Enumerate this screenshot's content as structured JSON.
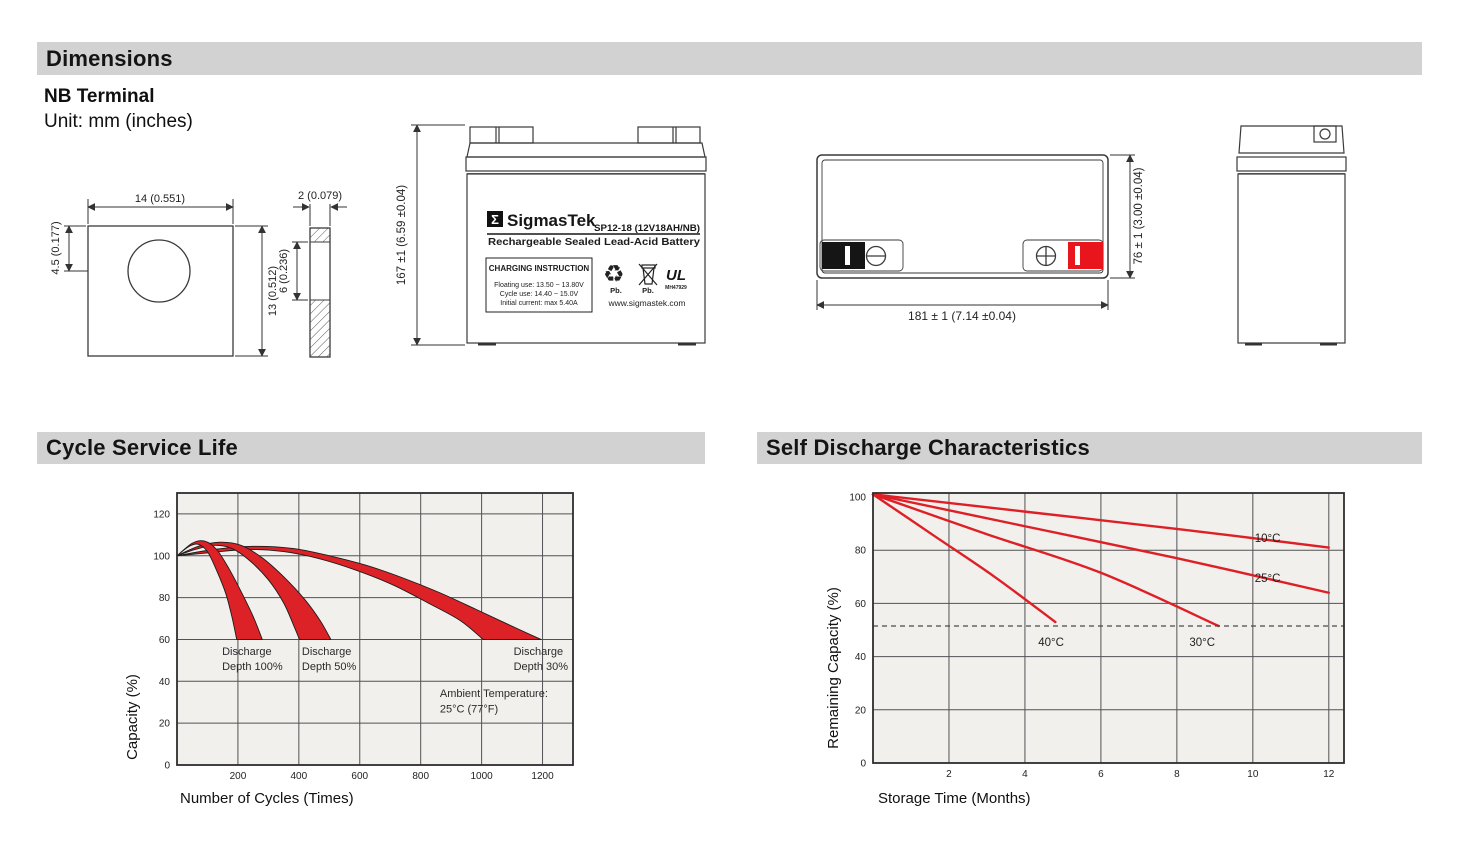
{
  "dimensions": {
    "title": "Dimensions",
    "terminal_label": "NB Terminal",
    "unit_label": "Unit: mm (inches)",
    "terminal": {
      "width": "14 (0.551)",
      "height": "13 (0.512)",
      "hole_offset": "4.5 (0.177)",
      "thickness": "2 (0.079)",
      "slot_height": "6 (0.236)"
    },
    "front_view": {
      "height_dim": "167 ±1 (6.59 ±0.04)",
      "sigma": "Σ",
      "brand": "SigmasTek",
      "model": "SP12-18 (12V18AH/NB)",
      "tagline": "Rechargeable Sealed Lead-Acid Battery",
      "charging": {
        "heading": "CHARGING INSTRUCTION",
        "lines": [
          "Floating use: 13.50 ~ 13.80V",
          "Cycle use: 14.40 ~ 15.0V",
          "Initial current: max 5.40A"
        ]
      },
      "recycle_glyph": "♻",
      "pb_label_1": "Pb.",
      "pb_label_2": "Pb.",
      "ul_mark": "UL",
      "ul_code": "MH47929",
      "website": "www.sigmastek.com"
    },
    "top_view": {
      "width_dim": "181 ± 1 (7.14 ±0.04)",
      "depth_dim": "76 ± 1 (3.00 ±0.04)"
    }
  },
  "chart_data": [
    {
      "type": "area",
      "title": "Cycle Service Life",
      "xlabel": "Number of Cycles (Times)",
      "ylabel": "Capacity (%)",
      "xlim": [
        0,
        1300
      ],
      "ylim": [
        0,
        130
      ],
      "xticks": [
        200,
        400,
        600,
        800,
        1000,
        1200
      ],
      "yticks": [
        0,
        20,
        40,
        60,
        80,
        100,
        120
      ],
      "grid": true,
      "plot_bg": "#f1f0ed",
      "band_color": "#dc2127",
      "bands": [
        {
          "name": "Discharge Depth 30%",
          "upper": [
            [
              0,
              100
            ],
            [
              120,
              103
            ],
            [
              250,
              104.5
            ],
            [
              380,
              103.5
            ],
            [
              500,
              100
            ],
            [
              620,
              95.5
            ],
            [
              740,
              89.5
            ],
            [
              860,
              82.5
            ],
            [
              980,
              74.5
            ],
            [
              1090,
              67
            ],
            [
              1195,
              60
            ]
          ],
          "lower": [
            [
              0,
              100
            ],
            [
              110,
              101.5
            ],
            [
              230,
              103
            ],
            [
              350,
              102
            ],
            [
              470,
              98.5
            ],
            [
              590,
              93
            ],
            [
              710,
              86
            ],
            [
              830,
              77
            ],
            [
              930,
              69
            ],
            [
              1005,
              60
            ]
          ]
        },
        {
          "name": "Discharge Depth 50%",
          "upper": [
            [
              0,
              100
            ],
            [
              70,
              104.5
            ],
            [
              140,
              106.5
            ],
            [
              210,
              105
            ],
            [
              280,
              99
            ],
            [
              350,
              90
            ],
            [
              420,
              79
            ],
            [
              470,
              69
            ],
            [
              505,
              60
            ]
          ],
          "lower": [
            [
              0,
              100
            ],
            [
              60,
              103
            ],
            [
              120,
              105
            ],
            [
              180,
              103.5
            ],
            [
              240,
              97.5
            ],
            [
              300,
              88.5
            ],
            [
              350,
              77.5
            ],
            [
              385,
              66
            ],
            [
              402,
              60
            ]
          ]
        },
        {
          "name": "Discharge Depth 100%",
          "upper": [
            [
              0,
              100
            ],
            [
              50,
              106
            ],
            [
              90,
              107
            ],
            [
              130,
              103
            ],
            [
              170,
              94
            ],
            [
              210,
              83
            ],
            [
              250,
              71
            ],
            [
              280,
              60
            ]
          ],
          "lower": [
            [
              0,
              100
            ],
            [
              40,
              104.5
            ],
            [
              70,
              105.5
            ],
            [
              100,
              102
            ],
            [
              130,
              93
            ],
            [
              160,
              82
            ],
            [
              180,
              71
            ],
            [
              196,
              60
            ]
          ]
        }
      ],
      "annotations": [
        {
          "text": "Discharge",
          "x": 148,
          "y": 52.5
        },
        {
          "text": "Depth 100%",
          "x": 148,
          "y": 45.5
        },
        {
          "text": "Discharge",
          "x": 410,
          "y": 52.5
        },
        {
          "text": "Depth 50%",
          "x": 410,
          "y": 45.5
        },
        {
          "text": "Discharge",
          "x": 1105,
          "y": 52.5
        },
        {
          "text": "Depth 30%",
          "x": 1105,
          "y": 45.5
        },
        {
          "text": "Ambient Temperature:",
          "x": 863,
          "y": 32.5
        },
        {
          "text": "25°C (77°F)",
          "x": 863,
          "y": 25
        }
      ]
    },
    {
      "type": "line",
      "title": "Self Discharge Characteristics",
      "xlabel": "Storage Time (Months)",
      "ylabel": "Remaining Capacity (%)",
      "xlim": [
        0,
        12.4
      ],
      "ylim": [
        0,
        101.5
      ],
      "xticks": [
        2,
        4,
        6,
        8,
        10,
        12
      ],
      "yticks": [
        0,
        20,
        40,
        60,
        80,
        100
      ],
      "grid": true,
      "plot_bg": "#f1f0ed",
      "series": [
        {
          "name": "10°C",
          "color": "#de2026",
          "points": [
            [
              0,
              101
            ],
            [
              4,
              94.5
            ],
            [
              8,
              88
            ],
            [
              12,
              81
            ]
          ],
          "label_x": 10.05,
          "label_y": 83
        },
        {
          "name": "25°C",
          "color": "#de2026",
          "points": [
            [
              0,
              101
            ],
            [
              4,
              89
            ],
            [
              8,
              77
            ],
            [
              12,
              64
            ]
          ],
          "label_x": 10.05,
          "label_y": 68
        },
        {
          "name": "30°C",
          "color": "#de2026",
          "points": [
            [
              0,
              101
            ],
            [
              3,
              86
            ],
            [
              6,
              71.5
            ],
            [
              9.1,
              51.5
            ]
          ],
          "label_x": 8.33,
          "label_y": 44
        },
        {
          "name": "40°C",
          "color": "#de2026",
          "points": [
            [
              0,
              101
            ],
            [
              1.6,
              85.5
            ],
            [
              3.2,
              70
            ],
            [
              4.8,
              53
            ]
          ],
          "label_x": 4.35,
          "label_y": 44
        }
      ],
      "ref_line": {
        "y": 51.5,
        "style": "dashed",
        "color": "#4a4a4a"
      }
    }
  ]
}
